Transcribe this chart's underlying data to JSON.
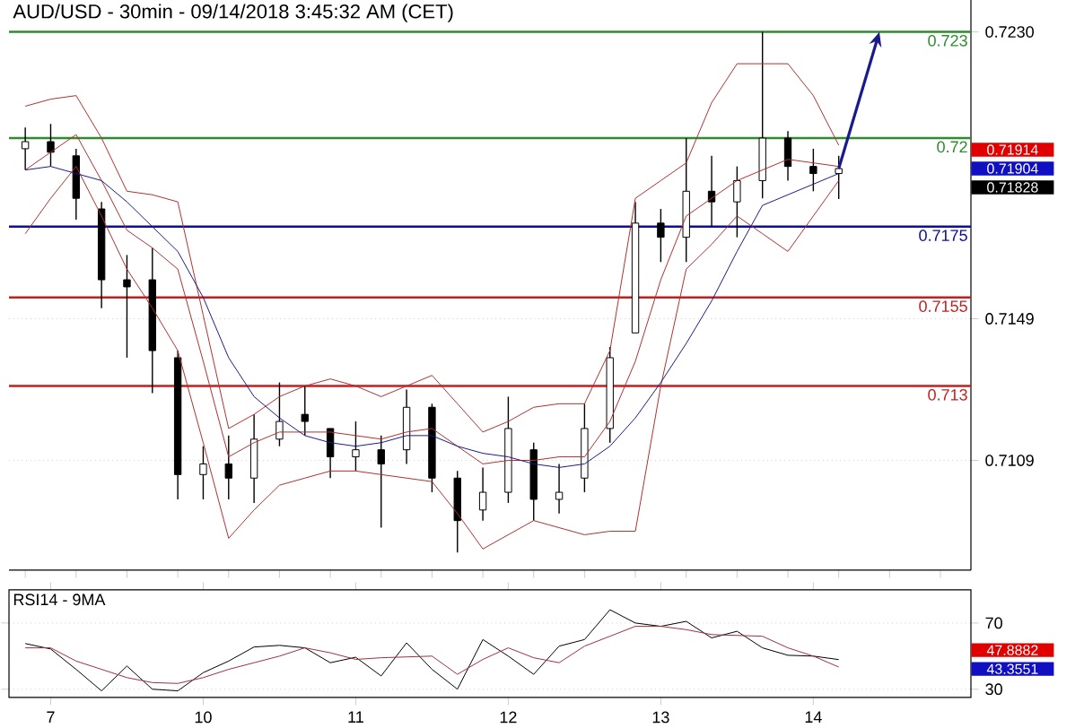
{
  "chart_data": [
    {
      "type": "candlestick",
      "title": "AUD/USD - 30min - 09/14/2018 3:45:32 AM (CET)",
      "categories": [
        null,
        null,
        null,
        null,
        null,
        null,
        null,
        null,
        null,
        null,
        null,
        null,
        null,
        null,
        null,
        null,
        null,
        null,
        null,
        null,
        null,
        null,
        null,
        null,
        null,
        null,
        null,
        null,
        null,
        null,
        null,
        null,
        null
      ],
      "ohlc": [
        [
          0.7197,
          0.7203,
          0.7191,
          0.7199
        ],
        [
          0.7199,
          0.7204,
          0.7192,
          0.7196
        ],
        [
          0.7195,
          0.7197,
          0.7177,
          0.7183
        ],
        [
          0.718,
          0.7182,
          0.7152,
          0.716
        ],
        [
          0.716,
          0.7167,
          0.7138,
          0.7158
        ],
        [
          0.716,
          0.7169,
          0.7128,
          0.714
        ],
        [
          0.7138,
          0.714,
          0.7098,
          0.7105
        ],
        [
          0.7105,
          0.7113,
          0.7098,
          0.7108
        ],
        [
          0.7108,
          0.7116,
          0.7098,
          0.7104
        ],
        [
          0.7104,
          0.7122,
          0.7097,
          0.7115
        ],
        [
          0.7115,
          0.7131,
          0.7113,
          0.712
        ],
        [
          0.7122,
          0.713,
          0.7116,
          0.712
        ],
        [
          0.7118,
          0.7118,
          0.7104,
          0.711
        ],
        [
          0.711,
          0.712,
          0.7106,
          0.7112
        ],
        [
          0.7112,
          0.7116,
          0.709,
          0.7108
        ],
        [
          0.7112,
          0.7129,
          0.7108,
          0.7124
        ],
        [
          0.7124,
          0.7125,
          0.71,
          0.7104
        ],
        [
          0.7104,
          0.7106,
          0.7083,
          0.7092
        ],
        [
          0.7095,
          0.7107,
          0.7092,
          0.71
        ],
        [
          0.71,
          0.7127,
          0.7097,
          0.7118
        ],
        [
          0.7112,
          0.7114,
          0.7092,
          0.7098
        ],
        [
          0.7098,
          0.7108,
          0.7094,
          0.71
        ],
        [
          0.7104,
          0.7125,
          0.71,
          0.7118
        ],
        [
          0.7118,
          0.7141,
          0.7114,
          0.7138
        ],
        [
          0.7145,
          0.7182,
          0.7145,
          0.7176
        ],
        [
          0.7176,
          0.718,
          0.7165,
          0.7172
        ],
        [
          0.7172,
          0.72,
          0.7165,
          0.7185
        ],
        [
          0.7185,
          0.7195,
          0.7175,
          0.7182
        ],
        [
          0.7182,
          0.7192,
          0.7172,
          0.7188
        ],
        [
          0.7188,
          0.723,
          0.7183,
          0.72
        ],
        [
          0.72,
          0.7202,
          0.7188,
          0.7192
        ],
        [
          0.7192,
          0.7197,
          0.7185,
          0.719
        ],
        [
          0.719,
          0.7195,
          0.71828,
          0.71914
        ]
      ],
      "color": "#000000",
      "series": [
        {
          "type": "line",
          "color": "#b03030",
          "values": [
            0.7209,
            0.7211,
            0.7212,
            0.72,
            0.7185,
            0.7184,
            0.7182,
            0.715,
            0.7118,
            0.7122,
            0.7127,
            0.713,
            0.7132,
            0.713,
            0.7127,
            0.713,
            0.7133,
            0.7125,
            0.7117,
            0.712,
            0.7124,
            0.7125,
            0.7125,
            0.714,
            0.7183,
            0.7188,
            0.7193,
            0.721,
            0.7221,
            0.7221,
            0.7221,
            0.7212,
            0.7198
          ]
        },
        {
          "type": "line",
          "color": "#b03030",
          "values": [
            0.7191,
            0.7196,
            0.7201,
            0.7188,
            0.7174,
            0.7169,
            0.7163,
            0.7137,
            0.711,
            0.7114,
            0.7117,
            0.7117,
            0.7117,
            0.7116,
            0.7115,
            0.7117,
            0.7118,
            0.7113,
            0.7108,
            0.7109,
            0.7109,
            0.711,
            0.711,
            0.712,
            0.7137,
            0.716,
            0.7178,
            0.7183,
            0.7188,
            0.7191,
            0.7194,
            0.7193,
            0.7192
          ]
        },
        {
          "type": "line",
          "color": "#b03030",
          "values": [
            0.7173,
            0.7183,
            0.7192,
            0.7178,
            0.7163,
            0.7152,
            0.714,
            0.7114,
            0.7087,
            0.7095,
            0.7102,
            0.7104,
            0.7106,
            0.7106,
            0.7105,
            0.7104,
            0.7103,
            0.7094,
            0.7084,
            0.7088,
            0.7092,
            0.709,
            0.7088,
            0.7089,
            0.7089,
            0.713,
            0.7163,
            0.717,
            0.7178,
            0.7173,
            0.7168,
            0.7178,
            0.7188
          ]
        },
        {
          "type": "line",
          "color": "#1a1a8c",
          "values": [
            0.7191,
            0.7192,
            0.719,
            0.7188,
            0.7182,
            0.7175,
            0.7168,
            0.7155,
            0.7138,
            0.7127,
            0.7121,
            0.7116,
            0.7114,
            0.7113,
            0.7114,
            0.7116,
            0.7116,
            0.7113,
            0.7111,
            0.711,
            0.7108,
            0.7107,
            0.7108,
            0.7113,
            0.7121,
            0.7131,
            0.7142,
            0.7154,
            0.7168,
            0.7181,
            0.7184,
            0.7187,
            0.719
          ]
        }
      ],
      "ylim": [
        0.7078,
        0.7239
      ],
      "yticks": [
        {
          "value": 0.723,
          "label": "0.7230"
        },
        {
          "value": 0.7149,
          "label": "0.7149"
        },
        {
          "value": 0.7109,
          "label": "0.7109"
        }
      ],
      "tick_labels": "y",
      "grid": "y",
      "ref_lines": [
        {
          "axis": "y",
          "value": 0.723,
          "label": "0.723",
          "color": "#2e8b2e"
        },
        {
          "axis": "y",
          "value": 0.72,
          "label": "0.72",
          "color": "#2e8b2e"
        },
        {
          "axis": "y",
          "value": 0.7175,
          "label": "0.7175",
          "color": "#10108c"
        },
        {
          "axis": "y",
          "value": 0.7155,
          "label": "0.7155",
          "color": "#c02020"
        },
        {
          "axis": "y",
          "value": 0.713,
          "label": "0.713",
          "color": "#c02020"
        }
      ],
      "annotations": [
        "0.71914",
        "0.71904",
        "0.71828"
      ]
    },
    {
      "type": "line",
      "title": "RSI14 - 9MA",
      "categories": [
        null,
        "7",
        null,
        null,
        null,
        null,
        null,
        "10",
        null,
        null,
        null,
        null,
        null,
        "11",
        null,
        null,
        null,
        null,
        null,
        "12",
        null,
        null,
        null,
        null,
        null,
        "13",
        null,
        null,
        null,
        null,
        null,
        "14",
        null
      ],
      "series": [
        {
          "color": "#000000",
          "values": [
            57.6,
            54.3,
            42,
            29,
            44,
            30,
            29,
            40,
            47,
            55.5,
            56.5,
            55,
            46,
            49.3,
            38,
            58,
            42,
            30,
            60,
            50,
            39,
            56,
            60,
            78,
            70,
            68,
            71,
            61,
            65,
            55,
            50.5,
            50,
            47.9
          ]
        },
        {
          "color": "#a03040",
          "values": [
            55,
            55,
            47,
            42,
            37,
            34,
            33.5,
            37,
            42,
            46,
            50,
            55,
            52,
            48,
            49,
            49.5,
            50,
            39,
            48,
            55,
            49,
            46,
            56,
            62,
            68,
            68,
            66,
            63,
            62.5,
            62,
            55,
            50,
            43.4
          ]
        }
      ],
      "ylim": [
        25,
        90
      ],
      "yticks": [
        70,
        30
      ],
      "grid": "y",
      "annotations": [
        "47.8882",
        "43.3551"
      ]
    }
  ]
}
